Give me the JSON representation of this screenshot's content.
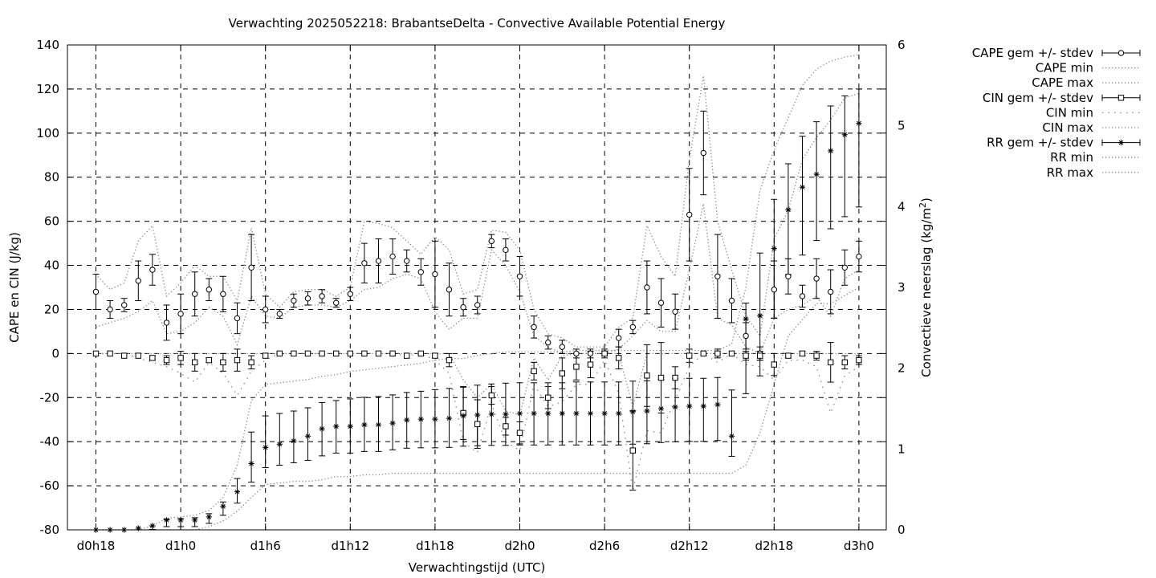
{
  "chart_data": {
    "type": "line",
    "title": "Verwachting 2025052218: BrabantseDelta - Convective Available Potential Energy",
    "xlabel": "Verwachtingstijd (UTC)",
    "ylabel": "CAPE en CIN (J/kg)",
    "y2label_main": "Convectieve neerslag (kg/m",
    "y2label_sup": "2",
    "y2label_end": ")",
    "xlim": [
      18,
      75
    ],
    "ylim": [
      -80,
      140
    ],
    "y2lim": [
      0,
      6
    ],
    "grid": true,
    "legend_position": "top-right outside",
    "x_ticks": [
      {
        "value": 18,
        "label": "d0h18"
      },
      {
        "value": 24,
        "label": "d1h0"
      },
      {
        "value": 30,
        "label": "d1h6"
      },
      {
        "value": 36,
        "label": "d1h12"
      },
      {
        "value": 42,
        "label": "d1h18"
      },
      {
        "value": 48,
        "label": "d2h0"
      },
      {
        "value": 54,
        "label": "d2h6"
      },
      {
        "value": 60,
        "label": "d2h12"
      },
      {
        "value": 66,
        "label": "d2h18"
      },
      {
        "value": 72,
        "label": "d3h0"
      }
    ],
    "y_ticks": [
      140,
      120,
      100,
      80,
      60,
      40,
      20,
      0,
      -20,
      -40,
      -60,
      -80
    ],
    "y2_ticks": [
      6,
      5,
      4,
      3,
      2,
      1,
      0
    ],
    "x": [
      18,
      19,
      20,
      21,
      22,
      23,
      24,
      25,
      26,
      27,
      28,
      29,
      30,
      31,
      32,
      33,
      34,
      35,
      36,
      37,
      38,
      39,
      40,
      41,
      42,
      43,
      44,
      45,
      46,
      47,
      48,
      49,
      50,
      51,
      52,
      53,
      54,
      55,
      56,
      57,
      58,
      59,
      60,
      61,
      62,
      63,
      64,
      65,
      66,
      67,
      68,
      69,
      70,
      71,
      72
    ],
    "legend": [
      {
        "label": "CAPE gem +/- stdev",
        "style": "errorbar",
        "marker": "circle"
      },
      {
        "label": "CAPE min",
        "style": "dotted"
      },
      {
        "label": "CAPE max",
        "style": "dotted"
      },
      {
        "label": "CIN gem +/- stdev",
        "style": "errorbar",
        "marker": "square"
      },
      {
        "label": "CIN min",
        "style": "dotted-sparse"
      },
      {
        "label": "CIN max",
        "style": "dotted"
      },
      {
        "label": "RR gem +/- stdev",
        "style": "errorbar",
        "marker": "star"
      },
      {
        "label": "RR min",
        "style": "dotted"
      },
      {
        "label": "RR max",
        "style": "dotted"
      }
    ],
    "series": [
      {
        "name": "CAPE gem +/- stdev",
        "axis": "left",
        "mean": [
          28,
          20,
          22,
          33,
          38,
          14,
          18,
          27,
          29,
          27,
          16,
          39,
          20,
          18,
          24,
          25,
          26,
          23,
          27,
          41,
          42,
          44,
          42,
          37,
          36,
          29,
          21,
          22,
          51,
          47,
          35,
          12,
          5,
          3,
          0,
          0,
          0,
          7,
          12,
          30,
          23,
          19,
          63,
          91,
          35,
          24,
          8,
          0,
          29,
          35,
          26,
          34,
          28,
          39,
          44
        ],
        "stdev": [
          8,
          4,
          3,
          9,
          7,
          8,
          9,
          10,
          5,
          8,
          7,
          15,
          6,
          2,
          3,
          3,
          3,
          2,
          3,
          9,
          10,
          8,
          5,
          6,
          15,
          12,
          4,
          4,
          3,
          5,
          9,
          5,
          3,
          3,
          2,
          2,
          2,
          4,
          3,
          12,
          11,
          8,
          21,
          19,
          19,
          10,
          6,
          3,
          13,
          8,
          5,
          9,
          10,
          8,
          7
        ]
      },
      {
        "name": "CAPE min",
        "axis": "left",
        "values": [
          12,
          14,
          16,
          19,
          24,
          9,
          10,
          14,
          21,
          17,
          4,
          26,
          17,
          16,
          21,
          22,
          22,
          21,
          24,
          29,
          30,
          34,
          36,
          34,
          19,
          11,
          16,
          16,
          47,
          40,
          28,
          8,
          3,
          0,
          0,
          0,
          0,
          2,
          8,
          15,
          10,
          10,
          38,
          68,
          16,
          13,
          3,
          0,
          16,
          20,
          22,
          26,
          17,
          34,
          38
        ]
      },
      {
        "name": "CAPE max",
        "axis": "left",
        "values": [
          36,
          29,
          32,
          51,
          58,
          26,
          32,
          40,
          35,
          35,
          24,
          57,
          27,
          21,
          28,
          29,
          29,
          26,
          30,
          60,
          59,
          57,
          51,
          45,
          53,
          47,
          27,
          29,
          56,
          55,
          47,
          20,
          9,
          7,
          3,
          3,
          3,
          12,
          16,
          58,
          44,
          35,
          88,
          126,
          60,
          38,
          17,
          8,
          52,
          65,
          88,
          98,
          106,
          116,
          118
        ]
      },
      {
        "name": "CIN gem +/- stdev",
        "axis": "left",
        "mean": [
          0,
          0,
          -1,
          -1,
          -2,
          -3,
          -2,
          -4,
          -3,
          -4,
          -3,
          -4,
          -1,
          0,
          0,
          0,
          0,
          0,
          0,
          0,
          0,
          0,
          -1,
          0,
          -1,
          -3,
          -27,
          -32,
          -19,
          -33,
          -36,
          -8,
          -20,
          -9,
          -6,
          -5,
          0,
          -2,
          -44,
          -10,
          -11,
          -11,
          -1,
          0,
          0,
          0,
          -1,
          -1,
          -5,
          -1,
          0,
          -1,
          -4,
          -4,
          -3
        ],
        "stdev": [
          0,
          0,
          0,
          0,
          1,
          2,
          3,
          4,
          1,
          4,
          5,
          3,
          1,
          0,
          0,
          0,
          0,
          0,
          0,
          0,
          0,
          0,
          0,
          0,
          1,
          3,
          12,
          11,
          4,
          4,
          5,
          4,
          5,
          7,
          6,
          6,
          1,
          5,
          18,
          14,
          16,
          5,
          3,
          0,
          2,
          0,
          2,
          2,
          5,
          1,
          1,
          2,
          9,
          3,
          2
        ]
      },
      {
        "name": "CIN min",
        "axis": "left",
        "values": [
          0,
          0,
          0,
          -2,
          -4,
          -6,
          -9,
          -13,
          -4,
          -9,
          -19,
          -8,
          -3,
          0,
          0,
          0,
          0,
          0,
          0,
          0,
          0,
          0,
          -1,
          0,
          -3,
          -9,
          -40,
          -45,
          -23,
          -40,
          -44,
          -14,
          -24,
          -22,
          -14,
          -14,
          -3,
          -18,
          -62,
          -35,
          -36,
          -21,
          -6,
          0,
          -4,
          0,
          -5,
          -6,
          -12,
          -3,
          -3,
          -6,
          -27,
          -10,
          -6
        ]
      },
      {
        "name": "CIN max",
        "axis": "left",
        "values": [
          0,
          0,
          0,
          0,
          0,
          0,
          0,
          0,
          0,
          0,
          0,
          0,
          0,
          0,
          0,
          0,
          0,
          0,
          0,
          0,
          0,
          0,
          0,
          0,
          0,
          0,
          -12,
          -20,
          -14,
          -26,
          -28,
          -2,
          -12,
          -1,
          0,
          0,
          0,
          0,
          -24,
          0,
          0,
          0,
          0,
          0,
          0,
          0,
          0,
          0,
          0,
          0,
          0,
          0,
          0,
          0,
          0
        ]
      },
      {
        "name": "RR gem +/- stdev",
        "axis": "right",
        "mean": [
          0.0,
          0.0,
          0.0,
          0.02,
          0.05,
          0.12,
          0.12,
          0.12,
          0.16,
          0.29,
          0.47,
          0.82,
          1.02,
          1.06,
          1.1,
          1.16,
          1.25,
          1.28,
          1.28,
          1.3,
          1.3,
          1.32,
          1.36,
          1.37,
          1.37,
          1.38,
          1.41,
          1.42,
          1.43,
          1.43,
          1.44,
          1.44,
          1.44,
          1.44,
          1.44,
          1.44,
          1.44,
          1.44,
          1.46,
          1.47,
          1.5,
          1.52,
          1.53,
          1.53,
          1.55,
          1.16,
          2.61,
          2.65,
          3.48,
          3.96,
          4.24,
          4.4,
          4.69,
          4.89,
          5.03
        ]
      },
      {
        "name": "RR min",
        "axis": "right",
        "values": [
          0,
          0,
          0,
          0,
          0,
          0,
          0,
          0,
          0.04,
          0.11,
          0.23,
          0.4,
          0.56,
          0.58,
          0.6,
          0.6,
          0.62,
          0.66,
          0.66,
          0.68,
          0.68,
          0.7,
          0.7,
          0.7,
          0.7,
          0.7,
          0.7,
          0.7,
          0.7,
          0.7,
          0.7,
          0.7,
          0.7,
          0.7,
          0.7,
          0.7,
          0.7,
          0.7,
          0.7,
          0.7,
          0.7,
          0.7,
          0.7,
          0.7,
          0.7,
          0.7,
          0.8,
          1.2,
          1.8,
          2.4,
          2.6,
          2.8,
          2.8,
          2.9,
          3.0
        ]
      },
      {
        "name": "RR max",
        "axis": "right",
        "values": [
          0,
          0,
          0,
          0,
          0.05,
          0.14,
          0.16,
          0.18,
          0.24,
          0.4,
          0.8,
          1.6,
          1.8,
          1.82,
          1.84,
          1.86,
          1.9,
          1.92,
          1.96,
          1.98,
          2.0,
          2.02,
          2.04,
          2.06,
          2.1,
          2.12,
          2.12,
          2.16,
          2.18,
          2.2,
          2.2,
          2.2,
          2.2,
          2.2,
          2.22,
          2.22,
          2.22,
          2.22,
          2.22,
          2.22,
          2.22,
          2.22,
          2.22,
          2.22,
          2.22,
          2.3,
          3.0,
          4.2,
          4.7,
          5.1,
          5.5,
          5.7,
          5.8,
          5.85,
          5.88
        ]
      }
    ]
  }
}
